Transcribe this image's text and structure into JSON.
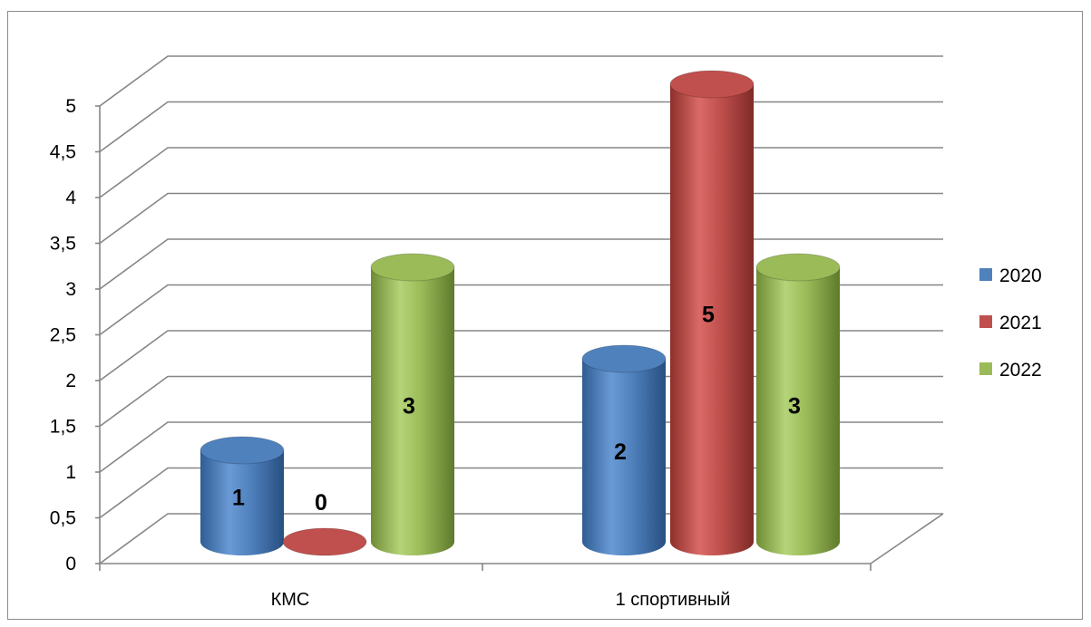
{
  "chart_data": {
    "type": "bar",
    "style": "3d-cylinder",
    "title": "",
    "xlabel": "",
    "ylabel": "",
    "categories": [
      "КМС",
      "1 спортивный"
    ],
    "series": [
      {
        "name": "2020",
        "color": "#4f81bd",
        "values": [
          1,
          2
        ]
      },
      {
        "name": "2021",
        "color": "#c0504d",
        "values": [
          0,
          5
        ]
      },
      {
        "name": "2022",
        "color": "#9bbb59",
        "values": [
          3,
          3
        ]
      }
    ],
    "ylim": [
      0,
      5
    ],
    "ytick_labels": [
      "0",
      "0,5",
      "1",
      "1,5",
      "2",
      "2,5",
      "3",
      "3,5",
      "4",
      "4,5",
      "5"
    ],
    "data_labels": [
      [
        "1",
        "2"
      ],
      [
        "0",
        "5"
      ],
      [
        "3",
        "3"
      ]
    ],
    "grid": true,
    "legend": "right"
  }
}
